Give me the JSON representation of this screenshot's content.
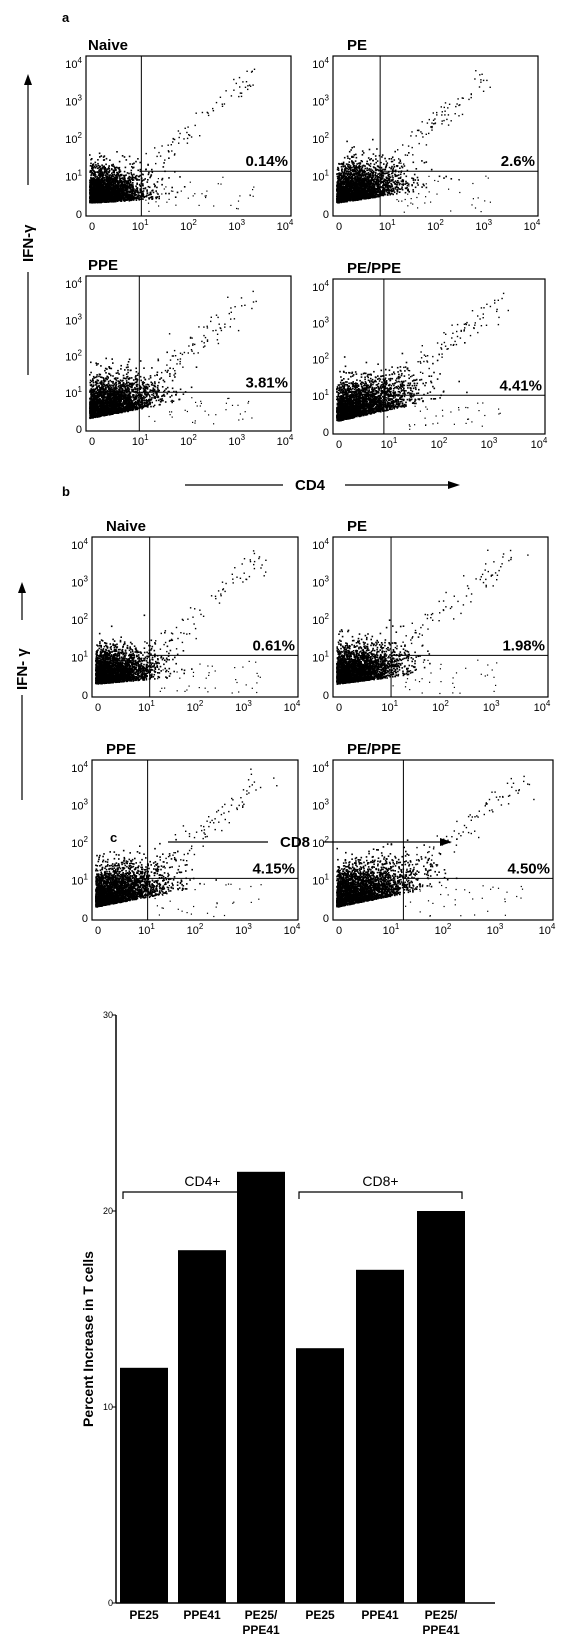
{
  "figure": {
    "panel_a": {
      "letter": "a",
      "y_axis_name": "IFN-γ",
      "x_axis_name": "CD4",
      "plots": [
        {
          "title": "Naive",
          "percent": "0.14%"
        },
        {
          "title": "PE",
          "percent": "2.6%"
        },
        {
          "title": "PPE",
          "percent": "3.81%"
        },
        {
          "title": "PE/PPE",
          "percent": "4.41%"
        }
      ]
    },
    "panel_b": {
      "letter": "b",
      "y_axis_name": "IFN- γ",
      "x_axis_name": "CD8",
      "plots": [
        {
          "title": "Naive",
          "percent": "0.61%"
        },
        {
          "title": "PE",
          "percent": "1.98%"
        },
        {
          "title": "PPE",
          "percent": "4.15%"
        },
        {
          "title": "PE/PPE",
          "percent": "4.50%"
        }
      ]
    },
    "panel_c": {
      "letter": "c",
      "group_cd4": "CD4+",
      "group_cd8": "CD8+"
    },
    "flow_ticks": {
      "x": [
        "0",
        "10^1",
        "10^2",
        "10^3",
        "10^4"
      ],
      "y": [
        "0",
        "10^1",
        "10^2",
        "10^3",
        "10^4"
      ]
    },
    "colors": {
      "ink": "#000000",
      "background": "#ffffff"
    }
  },
  "chart_data": {
    "type": "bar",
    "categories": [
      "PE25",
      "PPE41",
      "PE25/\nPPE41",
      "PE25",
      "PPE41",
      "PE25/\nPPE41"
    ],
    "groups": [
      {
        "name": "CD4+",
        "category_indices": [
          0,
          1,
          2
        ]
      },
      {
        "name": "CD8+",
        "category_indices": [
          3,
          4,
          5
        ]
      }
    ],
    "values": [
      12,
      18,
      22,
      13,
      17,
      20
    ],
    "ylabel": "Percent Increase in T cells",
    "xlabel": "",
    "ylim": [
      0,
      30
    ],
    "yticks": [
      "0",
      "10",
      "20",
      "30"
    ],
    "grid": false
  }
}
